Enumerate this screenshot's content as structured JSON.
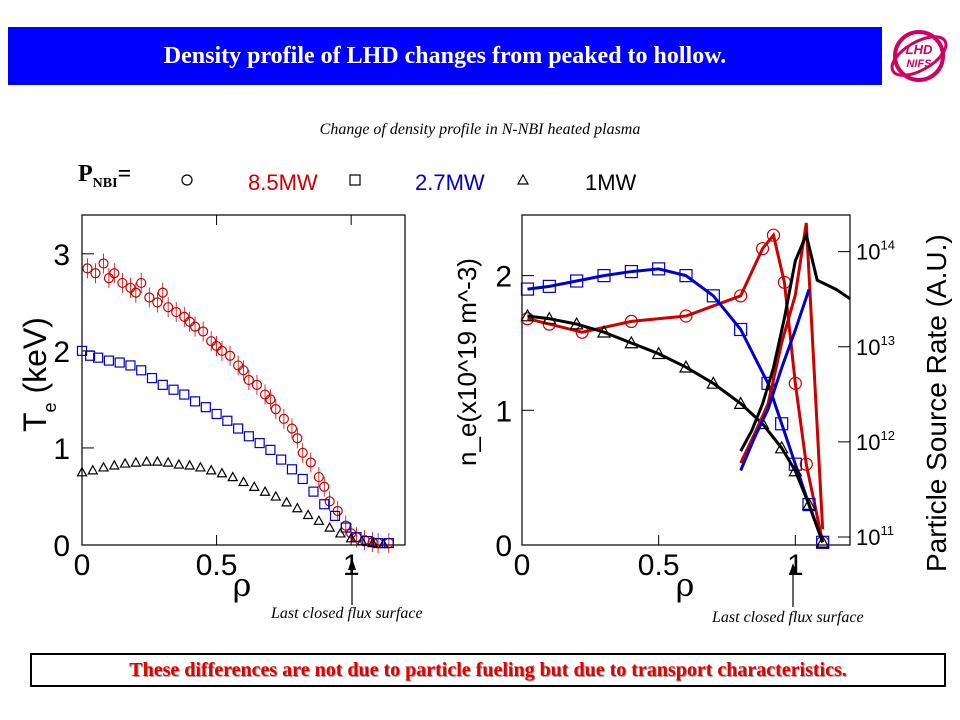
{
  "header": {
    "title": "Density profile of LHD changes from peaked to hollow.",
    "logo_text": "LHD NIFS"
  },
  "subtitle": "Change of density profile in N-NBI heated plasma",
  "pnbi_label": "P",
  "pnbi_sub": "NBI",
  "pnbi_eq": "=",
  "legend": [
    {
      "marker": "circle",
      "label": "8.5MW",
      "color": "#cc0000"
    },
    {
      "marker": "square",
      "label": "2.7MW",
      "color": "#0000cc"
    },
    {
      "marker": "triangle",
      "label": "1MW",
      "color": "#000000"
    }
  ],
  "lcfs_label": "Last closed flux surface",
  "footer": "These differences are not due to particle fueling but due to transport characteristics.",
  "chart_data": [
    {
      "type": "scatter",
      "title": "",
      "xlabel": "ρ",
      "ylabel": "T_e (keV)",
      "ylabel_main": "T",
      "ylabel_sub": "e",
      "ylabel_unit": " (keV)",
      "xlim": [
        0,
        1.2
      ],
      "ylim": [
        0,
        3.4
      ],
      "xticks": [
        "0",
        "0.5",
        "1"
      ],
      "yticks": [
        "0",
        "1",
        "2",
        "3"
      ],
      "series": [
        {
          "name": "8.5MW",
          "marker": "circle",
          "color": "#cc0000",
          "x": [
            0.02,
            0.05,
            0.08,
            0.1,
            0.12,
            0.15,
            0.18,
            0.2,
            0.22,
            0.25,
            0.28,
            0.3,
            0.32,
            0.35,
            0.38,
            0.4,
            0.42,
            0.45,
            0.48,
            0.5,
            0.52,
            0.55,
            0.58,
            0.6,
            0.62,
            0.65,
            0.68,
            0.7,
            0.72,
            0.75,
            0.78,
            0.8,
            0.82,
            0.85,
            0.88,
            0.9,
            0.92,
            0.95,
            0.98,
            1.0,
            1.02,
            1.05,
            1.08,
            1.1,
            1.14
          ],
          "y": [
            2.85,
            2.8,
            2.9,
            2.75,
            2.8,
            2.7,
            2.65,
            2.6,
            2.7,
            2.55,
            2.5,
            2.6,
            2.45,
            2.4,
            2.35,
            2.3,
            2.25,
            2.2,
            2.1,
            2.05,
            2.0,
            1.95,
            1.85,
            1.8,
            1.7,
            1.65,
            1.55,
            1.5,
            1.4,
            1.3,
            1.2,
            1.1,
            0.95,
            0.85,
            0.7,
            0.6,
            0.45,
            0.35,
            0.2,
            0.12,
            0.08,
            0.05,
            0.03,
            0.02,
            0.02
          ]
        },
        {
          "name": "2.7MW",
          "marker": "square",
          "color": "#0000cc",
          "x": [
            0.0,
            0.03,
            0.06,
            0.1,
            0.14,
            0.18,
            0.22,
            0.26,
            0.3,
            0.34,
            0.38,
            0.42,
            0.46,
            0.5,
            0.54,
            0.58,
            0.62,
            0.66,
            0.7,
            0.74,
            0.78,
            0.82,
            0.86,
            0.9,
            0.94,
            0.98,
            1.02,
            1.06,
            1.1,
            1.14
          ],
          "y": [
            2.0,
            1.95,
            1.93,
            1.9,
            1.88,
            1.85,
            1.8,
            1.72,
            1.65,
            1.6,
            1.55,
            1.48,
            1.42,
            1.35,
            1.28,
            1.2,
            1.12,
            1.05,
            0.98,
            0.88,
            0.78,
            0.68,
            0.55,
            0.42,
            0.3,
            0.18,
            0.08,
            0.04,
            0.02,
            0.02
          ]
        },
        {
          "name": "1MW",
          "marker": "triangle",
          "color": "#000000",
          "x": [
            0.0,
            0.04,
            0.08,
            0.12,
            0.16,
            0.2,
            0.24,
            0.28,
            0.32,
            0.36,
            0.4,
            0.44,
            0.48,
            0.52,
            0.56,
            0.6,
            0.64,
            0.68,
            0.72,
            0.76,
            0.8,
            0.84,
            0.88,
            0.92,
            0.96,
            1.0,
            1.04,
            1.08,
            1.12
          ],
          "y": [
            0.75,
            0.77,
            0.8,
            0.82,
            0.84,
            0.85,
            0.86,
            0.86,
            0.85,
            0.83,
            0.82,
            0.8,
            0.77,
            0.74,
            0.7,
            0.65,
            0.6,
            0.55,
            0.5,
            0.44,
            0.38,
            0.31,
            0.25,
            0.18,
            0.12,
            0.07,
            0.04,
            0.02,
            0.01
          ]
        }
      ]
    },
    {
      "type": "line",
      "title": "",
      "xlabel": "ρ",
      "ylabel": "n_e(x10^19 m^-3)",
      "y2label": "Particle Source Rate (A.U.)",
      "xlim": [
        0,
        1.2
      ],
      "ylim": [
        0,
        2.45
      ],
      "y2_scale": "log",
      "y2lim": [
        100000000000.0,
        200000000000000.0
      ],
      "xticks": [
        "0",
        "0.5",
        "1"
      ],
      "yticks": [
        "0",
        "1",
        "2"
      ],
      "y2ticks": [
        "10^11",
        "10^12",
        "10^13",
        "10^14"
      ],
      "series": [
        {
          "name": "8.5MW",
          "marker": "circle",
          "color": "#cc0000",
          "axis": "left",
          "x": [
            0.02,
            0.1,
            0.22,
            0.4,
            0.6,
            0.8,
            0.88,
            0.92,
            0.96,
            1.0,
            1.04,
            1.1
          ],
          "y": [
            1.68,
            1.64,
            1.58,
            1.66,
            1.7,
            1.85,
            2.2,
            2.3,
            1.95,
            1.2,
            0.6,
            0.02
          ]
        },
        {
          "name": "2.7MW",
          "marker": "square",
          "color": "#0000cc",
          "axis": "left",
          "x": [
            0.02,
            0.1,
            0.2,
            0.3,
            0.4,
            0.5,
            0.6,
            0.7,
            0.8,
            0.9,
            0.95,
            1.0,
            1.05,
            1.1
          ],
          "y": [
            1.9,
            1.92,
            1.96,
            2.0,
            2.03,
            2.05,
            2.0,
            1.85,
            1.6,
            1.2,
            0.9,
            0.6,
            0.3,
            0.02
          ]
        },
        {
          "name": "1MW",
          "marker": "triangle",
          "color": "#000000",
          "axis": "left",
          "x": [
            0.02,
            0.1,
            0.2,
            0.3,
            0.4,
            0.5,
            0.6,
            0.7,
            0.8,
            0.88,
            0.95,
            1.0,
            1.05,
            1.1
          ],
          "y": [
            1.7,
            1.68,
            1.64,
            1.58,
            1.5,
            1.42,
            1.32,
            1.2,
            1.05,
            0.9,
            0.72,
            0.55,
            0.3,
            0.02
          ]
        },
        {
          "name": "8.5MW source",
          "color": "#cc0000",
          "axis": "right",
          "x": [
            0.8,
            0.85,
            0.9,
            0.95,
            1.0,
            1.04,
            1.1
          ],
          "y": [
            600000000000.0,
            1200000000000.0,
            2500000000000.0,
            11000000000000.0,
            35000000000000.0,
            200000000000000.0,
            120000000000.0
          ]
        },
        {
          "name": "2.7MW source",
          "color": "#0000cc",
          "axis": "right",
          "x": [
            0.8,
            0.85,
            0.9,
            0.95,
            1.0,
            1.05
          ],
          "y": [
            500000000000.0,
            1100000000000.0,
            2200000000000.0,
            6000000000000.0,
            15000000000000.0,
            40000000000000.0
          ]
        },
        {
          "name": "1MW source",
          "color": "#000000",
          "axis": "right",
          "x": [
            0.8,
            0.84,
            0.88,
            0.92,
            0.96,
            1.0,
            1.04,
            1.08,
            1.15,
            1.2
          ],
          "y": [
            800000000000.0,
            1300000000000.0,
            2500000000000.0,
            6000000000000.0,
            20000000000000.0,
            80000000000000.0,
            150000000000000.0,
            50000000000000.0,
            40000000000000.0,
            32000000000000.0
          ]
        }
      ]
    }
  ]
}
